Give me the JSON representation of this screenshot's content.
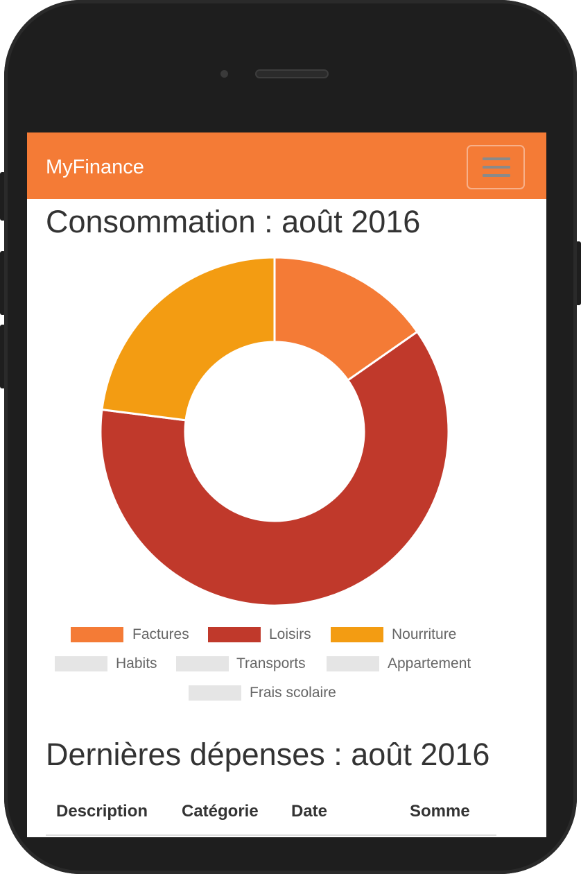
{
  "app": {
    "brand": "MyFinance",
    "menu_icon": "hamburger-menu-icon"
  },
  "consumption": {
    "title": "Consommation : août 2016"
  },
  "chart_data": {
    "type": "pie",
    "style": "donut",
    "categories": [
      "Factures",
      "Loisirs",
      "Nourriture",
      "Habits",
      "Transports",
      "Appartement",
      "Frais scolaire"
    ],
    "values": [
      15.3,
      61.7,
      23.0,
      0,
      0,
      0,
      0
    ],
    "colors": [
      "#f47b36",
      "#c0392b",
      "#f39c12",
      "#e5e5e5",
      "#e5e5e5",
      "#e5e5e5",
      "#e5e5e5"
    ],
    "hidden": [
      false,
      false,
      false,
      true,
      true,
      true,
      true
    ],
    "legend": "bottom"
  },
  "expenses": {
    "title": "Dernières dépenses : août 2016",
    "columns": [
      "Description",
      "Catégorie",
      "Date",
      "Somme"
    ]
  }
}
